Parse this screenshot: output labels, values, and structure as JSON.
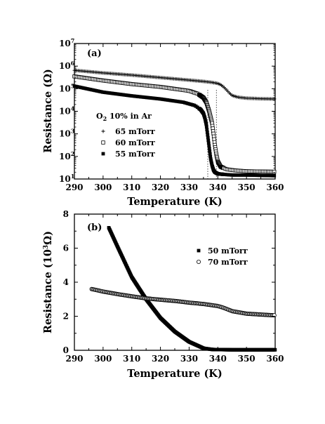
{
  "chart_data": [
    {
      "panel_label": "(a)",
      "type": "scatter",
      "xlabel": "Temperature (K)",
      "ylabel": "Resistance (Ω)",
      "xlim": [
        290,
        360
      ],
      "ylim": [
        10,
        10000000
      ],
      "y_scale": "log",
      "x_ticks": [
        "290",
        "300",
        "310",
        "320",
        "330",
        "340",
        "350",
        "360"
      ],
      "y_tick_mantissa": "10",
      "y_tick_exponents": [
        "1",
        "2",
        "3",
        "4",
        "5",
        "6",
        "7"
      ],
      "legend_title": "O",
      "legend_title_sub": "2",
      "legend_title_rest": " 10% in Ar",
      "legend_location": "center-left",
      "reference_lines_x": [
        336.5,
        339.5
      ],
      "series": [
        {
          "name": "65 mTorr",
          "marker": "plus",
          "x": [
            290,
            300,
            310,
            320,
            330,
            335,
            338,
            340,
            341,
            342,
            343,
            344,
            345,
            347,
            350,
            355,
            360
          ],
          "y": [
            650000,
            500000,
            400000,
            310000,
            240000,
            210000,
            190000,
            170000,
            150000,
            120000,
            90000,
            65000,
            50000,
            42000,
            38000,
            36000,
            35000
          ]
        },
        {
          "name": "60 mTorr",
          "marker": "open-square",
          "x": [
            290,
            300,
            310,
            320,
            330,
            333,
            335,
            336,
            337,
            338,
            338.5,
            339,
            339.5,
            340,
            341,
            343,
            346,
            350,
            360
          ],
          "y": [
            350000,
            230000,
            160000,
            120000,
            80000,
            60000,
            40000,
            25000,
            10000,
            3000,
            1000,
            300,
            120,
            60,
            35,
            27,
            24,
            22,
            21
          ]
        },
        {
          "name": "55 mTorr",
          "marker": "filled-square",
          "x": [
            290,
            300,
            310,
            320,
            328,
            332,
            334,
            335,
            335.5,
            336,
            336.5,
            337,
            337.5,
            338,
            338.5,
            339,
            340,
            342,
            345,
            350,
            360
          ],
          "y": [
            130000,
            70000,
            48000,
            35000,
            25000,
            18000,
            12000,
            8000,
            5000,
            2500,
            800,
            250,
            80,
            40,
            25,
            20,
            17,
            16,
            15,
            15,
            14
          ]
        }
      ]
    },
    {
      "panel_label": "(b)",
      "type": "scatter",
      "xlabel": "Temperature (K)",
      "ylabel_prefix": "Resistance (10",
      "ylabel_sup": "3",
      "ylabel_suffix": "Ω)",
      "xlim": [
        290,
        360
      ],
      "ylim": [
        0,
        8
      ],
      "x_ticks": [
        "290",
        "300",
        "310",
        "320",
        "330",
        "340",
        "350",
        "360"
      ],
      "y_ticks": [
        "0",
        "2",
        "4",
        "6",
        "8"
      ],
      "legend_location": "right",
      "series": [
        {
          "name": "50 mTorr",
          "marker": "filled-square",
          "x": [
            302,
            305,
            310,
            315,
            320,
            325,
            330,
            335,
            338,
            340,
            345,
            350,
            360
          ],
          "y": [
            7.2,
            6.1,
            4.3,
            3.0,
            1.9,
            1.1,
            0.5,
            0.12,
            0.05,
            0.04,
            0.03,
            0.03,
            0.03
          ]
        },
        {
          "name": "70 mTorr",
          "marker": "open-circle",
          "x": [
            296,
            300,
            305,
            310,
            315,
            320,
            325,
            330,
            335,
            340,
            342,
            345,
            350,
            355,
            360
          ],
          "y": [
            3.6,
            3.45,
            3.3,
            3.17,
            3.05,
            2.97,
            2.9,
            2.8,
            2.72,
            2.6,
            2.5,
            2.3,
            2.15,
            2.1,
            2.05
          ]
        }
      ]
    }
  ]
}
